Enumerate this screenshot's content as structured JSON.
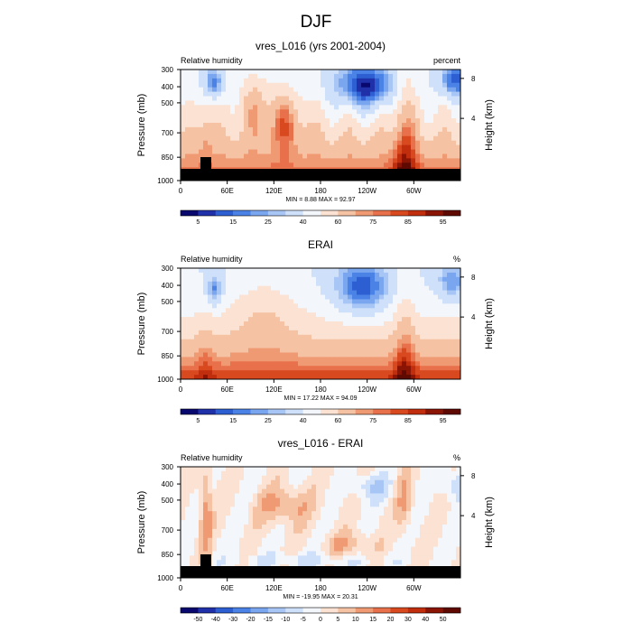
{
  "figure_title": "DJF",
  "chart_data": [
    {
      "type": "heatmap",
      "title": "vres_L016 (yrs 2001-2004)",
      "left_label": "Relative humidity",
      "units": "percent",
      "ylabel": "Pressure (mb)",
      "right_ylabel": "Height (km)",
      "pressure_ticks": [
        "300",
        "400",
        "500",
        "700",
        "850",
        "1000"
      ],
      "height_ticks": [
        "8",
        "4"
      ],
      "lon_ticks": [
        "0",
        "60E",
        "120E",
        "180",
        "120W",
        "60W"
      ],
      "stats": "MIN =   8.88  MAX =  92.97",
      "min": 8.88,
      "max": 92.97,
      "colorbar_labels": [
        "5",
        "15",
        "25",
        "40",
        "60",
        "75",
        "85",
        "95"
      ],
      "field": "model",
      "has_orography": true
    },
    {
      "type": "heatmap",
      "title": "ERAI",
      "left_label": "Relative humidity",
      "units": "%",
      "ylabel": "Pressure (mb)",
      "right_ylabel": "Height (km)",
      "pressure_ticks": [
        "300",
        "400",
        "500",
        "700",
        "850",
        "1000"
      ],
      "height_ticks": [
        "8",
        "4"
      ],
      "lon_ticks": [
        "0",
        "60E",
        "120E",
        "180",
        "120W",
        "60W"
      ],
      "stats": "MIN =  17.22  MAX =  94.09",
      "min": 17.22,
      "max": 94.09,
      "colorbar_labels": [
        "5",
        "15",
        "25",
        "40",
        "60",
        "75",
        "85",
        "95"
      ],
      "field": "reanalysis",
      "has_orography": false
    },
    {
      "type": "heatmap",
      "title": "vres_L016 - ERAI",
      "left_label": "Relative humidity",
      "units": "%",
      "ylabel": "Pressure (mb)",
      "right_ylabel": "Height (km)",
      "pressure_ticks": [
        "300",
        "400",
        "500",
        "700",
        "850",
        "1000"
      ],
      "height_ticks": [
        "8",
        "4"
      ],
      "lon_ticks": [
        "0",
        "60E",
        "120E",
        "180",
        "120W",
        "60W"
      ],
      "stats": "MIN = -19.95  MAX =  20.31",
      "min": -19.95,
      "max": 20.31,
      "colorbar_labels": [
        "-50",
        "-40",
        "-30",
        "-20",
        "-15",
        "-10",
        "-5",
        "0",
        "5",
        "10",
        "15",
        "20",
        "30",
        "40",
        "50"
      ],
      "field": "difference",
      "has_orography": true
    }
  ],
  "colors": {
    "colorbar": [
      "#08086e",
      "#1f30a8",
      "#2e5fd2",
      "#4a82e6",
      "#7aa6ef",
      "#a8c6f5",
      "#cfe0fa",
      "#f3f6fb",
      "#fbe2d2",
      "#f6c2a4",
      "#f09a74",
      "#e8704a",
      "#d9491f",
      "#c02e0e",
      "#8a1505",
      "#5e0a02"
    ],
    "terrain": "#000000"
  }
}
